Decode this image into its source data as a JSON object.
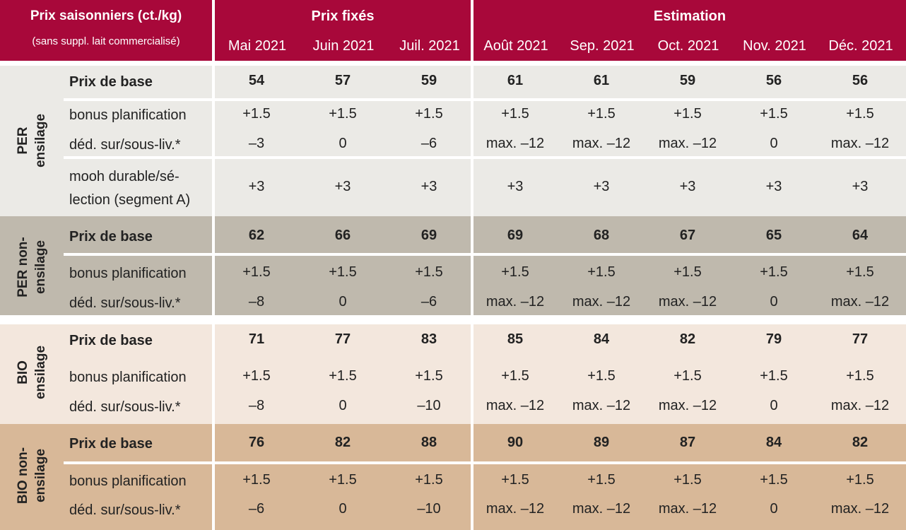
{
  "header": {
    "corner_title": "Prix saisonniers (ct./kg)",
    "corner_subtitle": "(sans suppl. lait commercialisé)",
    "fixed_label": "Prix fixés",
    "estimate_label": "Estimation",
    "months": [
      "Mai 2021",
      "Juin 2021",
      "Juil. 2021",
      "Août 2021",
      "Sep. 2021",
      "Oct. 2021",
      "Nov. 2021",
      "Déc. 2021"
    ]
  },
  "colors": {
    "header": "#a8083a",
    "per_ensilage": "#ebeae6",
    "per_non_ensilage": "#bfb9ad",
    "bio_ensilage": "#f3e7dd",
    "bio_non_ensilage": "#d8b898"
  },
  "sections": [
    {
      "line1": "PER",
      "line2": "ensilage",
      "rows": [
        {
          "label": "Prix de base",
          "values": [
            "54",
            "57",
            "59",
            "61",
            "61",
            "59",
            "56",
            "56"
          ]
        },
        {
          "label": "bonus planification",
          "values": [
            "+1.5",
            "+1.5",
            "+1.5",
            "+1.5",
            "+1.5",
            "+1.5",
            "+1.5",
            "+1.5"
          ]
        },
        {
          "label": "déd. sur/sous-liv.*",
          "values": [
            "–3",
            "0",
            "–6",
            "max. –12",
            "max. –12",
            "max. –12",
            "0",
            "max. –12"
          ]
        },
        {
          "label_line1": "mooh durable/sé-",
          "label_line2": "lection (segment A)",
          "values": [
            "+3",
            "+3",
            "+3",
            "+3",
            "+3",
            "+3",
            "+3",
            "+3"
          ]
        }
      ]
    },
    {
      "line1": "PER non-",
      "line2": "ensilage",
      "rows": [
        {
          "label": "Prix de base",
          "values": [
            "62",
            "66",
            "69",
            "69",
            "68",
            "67",
            "65",
            "64"
          ]
        },
        {
          "label": "bonus planification",
          "values": [
            "+1.5",
            "+1.5",
            "+1.5",
            "+1.5",
            "+1.5",
            "+1.5",
            "+1.5",
            "+1.5"
          ]
        },
        {
          "label": "déd. sur/sous-liv.*",
          "values": [
            "–8",
            "0",
            "–6",
            "max. –12",
            "max. –12",
            "max. –12",
            "0",
            "max. –12"
          ]
        }
      ]
    },
    {
      "line1": "BIO",
      "line2": "ensilage",
      "rows": [
        {
          "label": "Prix de base",
          "values": [
            "71",
            "77",
            "83",
            "85",
            "84",
            "82",
            "79",
            "77"
          ]
        },
        {
          "label": "bonus planification",
          "values": [
            "+1.5",
            "+1.5",
            "+1.5",
            "+1.5",
            "+1.5",
            "+1.5",
            "+1.5",
            "+1.5"
          ]
        },
        {
          "label": "déd. sur/sous-liv.*",
          "values": [
            "–8",
            "0",
            "–10",
            "max. –12",
            "max. –12",
            "max. –12",
            "0",
            "max. –12"
          ]
        }
      ]
    },
    {
      "line1": "BIO non-",
      "line2": "ensilage",
      "rows": [
        {
          "label": "Prix de base",
          "values": [
            "76",
            "82",
            "88",
            "90",
            "89",
            "87",
            "84",
            "82"
          ]
        },
        {
          "label": "bonus planification",
          "values": [
            "+1.5",
            "+1.5",
            "+1.5",
            "+1.5",
            "+1.5",
            "+1.5",
            "+1.5",
            "+1.5"
          ]
        },
        {
          "label": "déd. sur/sous-liv.*",
          "values": [
            "–6",
            "0",
            "–10",
            "max. –12",
            "max. –12",
            "max. –12",
            "0",
            "max. –12"
          ]
        }
      ]
    }
  ]
}
